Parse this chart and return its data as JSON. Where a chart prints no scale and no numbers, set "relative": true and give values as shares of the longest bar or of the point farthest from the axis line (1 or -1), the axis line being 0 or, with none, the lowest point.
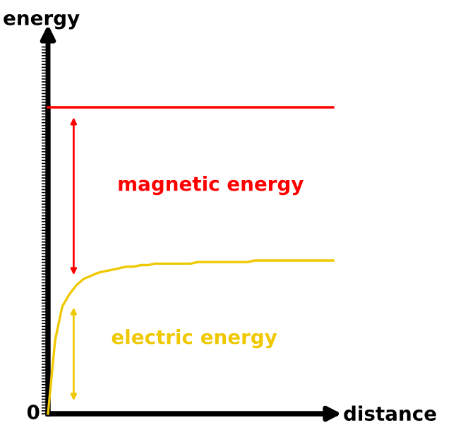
{
  "chart_data": {
    "type": "line",
    "relative": true,
    "xlabel": "distance",
    "ylabel": "energy",
    "categories": [
      null,
      null,
      null,
      null,
      null,
      null,
      null,
      null,
      null,
      null,
      null,
      null,
      null,
      null,
      null,
      null,
      null,
      null,
      null,
      null,
      null,
      null,
      null,
      null,
      null,
      null,
      null,
      null,
      null,
      null,
      null,
      null,
      null,
      null,
      null,
      null,
      null,
      null,
      null,
      null,
      null
    ],
    "series": [
      {
        "color": "#ff0000",
        "values": [
          1,
          1,
          1,
          1,
          1,
          1,
          1,
          1,
          1,
          1,
          1,
          1,
          1,
          1,
          1,
          1,
          1,
          1,
          1,
          1,
          1,
          1,
          1,
          1,
          1,
          1,
          1,
          1,
          1,
          1,
          1,
          1,
          1,
          1,
          1,
          1,
          1,
          1,
          1,
          1,
          1
        ]
      },
      {
        "color": "#f0c800",
        "values": [
          0,
          0.24,
          0.35,
          0.39,
          0.42,
          0.44,
          0.45,
          0.46,
          0.465,
          0.47,
          0.475,
          0.48,
          0.48,
          0.485,
          0.485,
          0.49,
          0.49,
          0.49,
          0.49,
          0.49,
          0.49,
          0.495,
          0.495,
          0.495,
          0.495,
          0.495,
          0.495,
          0.495,
          0.495,
          0.5,
          0.5,
          0.5,
          0.5,
          0.5,
          0.5,
          0.5,
          0.5,
          0.5,
          0.5,
          0.5,
          0.5
        ]
      }
    ],
    "annotations": [
      "magnetic energy",
      "electric energy",
      "0"
    ],
    "grid": false,
    "legend": false,
    "marker": "none",
    "line_style": "solid"
  }
}
